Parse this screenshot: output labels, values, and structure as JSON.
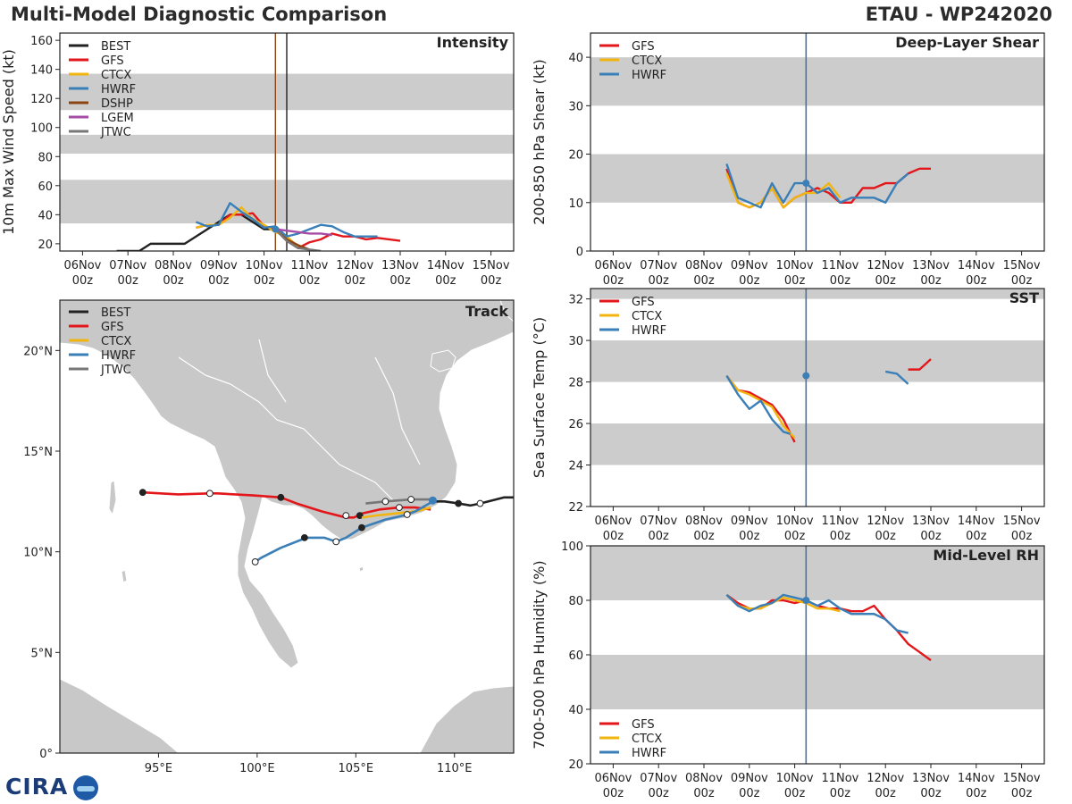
{
  "header": {
    "title": "Multi-Model Diagnostic Comparison",
    "storm": "ETAU - WP242020"
  },
  "logo": {
    "text": "CIRA",
    "name": "cira-logo"
  },
  "colors": {
    "BEST": "#222222",
    "GFS": "#e3171b",
    "CTCX": "#f2b50f",
    "HWRF": "#3a7fb8",
    "DSHP": "#8b4513",
    "LGEM": "#a64ca6",
    "JTWC": "#777777",
    "band": "#cccccc",
    "now": "#5a7088"
  },
  "time_axis": {
    "day_labels": [
      "06Nov",
      "07Nov",
      "08Nov",
      "09Nov",
      "10Nov",
      "11Nov",
      "12Nov",
      "13Nov",
      "14Nov",
      "15Nov"
    ],
    "hour_label": "00z",
    "range": [
      -0.5,
      9.5
    ],
    "now": 4.25
  },
  "chart_data": [
    {
      "id": "intensity",
      "type": "line",
      "title": "Intensity",
      "ylabel": "10m Max Wind Speed (kt)",
      "ylim": [
        15,
        165
      ],
      "yticks": [
        20,
        40,
        60,
        80,
        100,
        120,
        140,
        160
      ],
      "bands": [
        [
          34,
          64
        ],
        [
          82,
          95
        ],
        [
          112,
          137
        ]
      ],
      "vlines": [
        {
          "x": 4.25,
          "color": "#8b4513"
        },
        {
          "x": 4.5,
          "color": "#222222"
        }
      ],
      "legend": [
        "BEST",
        "GFS",
        "CTCX",
        "HWRF",
        "DSHP",
        "LGEM",
        "JTWC"
      ],
      "series": [
        {
          "name": "BEST",
          "x": [
            0.75,
            1,
            1.25,
            1.5,
            1.75,
            2,
            2.25,
            2.5,
            2.75,
            3,
            3.25,
            3.5,
            3.75,
            4,
            4.25
          ],
          "y": [
            15,
            15,
            15,
            20,
            20,
            20,
            20,
            25,
            30,
            35,
            40,
            40,
            35,
            30,
            30
          ]
        },
        {
          "name": "GFS",
          "x": [
            2.5,
            2.75,
            3,
            3.25,
            3.5,
            3.75,
            4,
            4.25,
            4.5,
            4.75,
            5,
            5.25,
            5.5,
            5.75,
            6,
            6.25,
            6.5,
            6.75,
            7
          ],
          "y": [
            31,
            33,
            33,
            40,
            40,
            41,
            32,
            30,
            22,
            17,
            21,
            23,
            27,
            25,
            25,
            23,
            24,
            23,
            22
          ]
        },
        {
          "name": "CTCX",
          "x": [
            2.5,
            2.75,
            3,
            3.25,
            3.5,
            3.75,
            4,
            4.25,
            4.5,
            4.75
          ],
          "y": [
            31,
            33,
            33,
            38,
            45,
            37,
            33,
            28,
            25,
            18
          ]
        },
        {
          "name": "HWRF",
          "x": [
            2.5,
            2.75,
            3,
            3.25,
            3.5,
            3.75,
            4,
            4.25,
            4.5,
            4.75,
            5,
            5.25,
            5.5,
            5.75,
            6,
            6.25,
            6.5
          ],
          "y": [
            35,
            32,
            33,
            48,
            42,
            37,
            31,
            32,
            25,
            27,
            30,
            33,
            32,
            28,
            25,
            25,
            25
          ]
        },
        {
          "name": "DSHP",
          "x": [
            4.25,
            4.5,
            4.75,
            5
          ],
          "y": [
            30,
            23,
            19,
            16
          ]
        },
        {
          "name": "LGEM",
          "x": [
            4.25,
            4.5,
            4.75,
            5,
            5.25,
            5.5
          ],
          "y": [
            30,
            29,
            28,
            27,
            27,
            26
          ]
        },
        {
          "name": "JTWC",
          "x": [
            4.25,
            4.5,
            4.75,
            5,
            5.25
          ],
          "y": [
            30,
            22,
            17,
            16,
            15
          ]
        }
      ]
    },
    {
      "id": "shear",
      "type": "line",
      "title": "Deep-Layer Shear",
      "ylabel": "200-850 hPa Shear (kt)",
      "ylim": [
        0,
        45
      ],
      "yticks": [
        0,
        10,
        20,
        30,
        40
      ],
      "bands": [
        [
          10,
          20
        ],
        [
          30,
          40
        ]
      ],
      "legend": [
        "GFS",
        "CTCX",
        "HWRF"
      ],
      "series": [
        {
          "name": "GFS",
          "x": [
            2.5,
            2.75,
            3,
            3.25,
            3.5,
            3.75,
            4,
            4.25,
            4.5,
            4.75,
            5,
            5.25,
            5.5,
            5.75,
            6,
            6.25,
            6.5,
            6.75,
            7
          ],
          "y": [
            17,
            10,
            9,
            10,
            13,
            9,
            11,
            12,
            13,
            12,
            10,
            10,
            13,
            13,
            14,
            14,
            16,
            17,
            17
          ]
        },
        {
          "name": "CTCX",
          "x": [
            2.5,
            2.75,
            3,
            3.25,
            3.5,
            3.75,
            4,
            4.25,
            4.5,
            4.75,
            5
          ],
          "y": [
            16,
            10,
            9,
            10,
            13,
            9,
            11,
            12,
            12,
            14,
            11
          ]
        },
        {
          "name": "HWRF",
          "x": [
            2.5,
            2.75,
            3,
            3.25,
            3.5,
            3.75,
            4,
            4.25,
            4.5,
            4.75,
            5,
            5.25,
            5.5,
            5.75,
            6,
            6.25,
            6.5
          ],
          "y": [
            18,
            11,
            10,
            9,
            14,
            10,
            14,
            14,
            12,
            13,
            10,
            11,
            11,
            11,
            10,
            14,
            16
          ]
        }
      ]
    },
    {
      "id": "sst",
      "type": "line",
      "title": "SST",
      "ylabel": "Sea Surface Temp (°C)",
      "ylim": [
        22,
        32.5
      ],
      "yticks": [
        22,
        24,
        26,
        28,
        30,
        32
      ],
      "bands": [
        [
          24,
          26
        ],
        [
          28,
          30
        ],
        [
          32,
          33
        ]
      ],
      "legend": [
        "GFS",
        "CTCX",
        "HWRF"
      ],
      "series": [
        {
          "name": "GFS",
          "x": [
            2.5,
            2.75,
            3,
            3.25,
            3.5,
            3.75,
            4
          ],
          "y": [
            28.3,
            27.6,
            27.5,
            27.2,
            26.9,
            26.2,
            25.1
          ],
          "x2": [
            6.5,
            6.75,
            7
          ],
          "y2": [
            28.6,
            28.6,
            29.1
          ]
        },
        {
          "name": "CTCX",
          "x": [
            2.5,
            2.75,
            3,
            3.25,
            3.5,
            3.75,
            4
          ],
          "y": [
            28.3,
            27.6,
            27.4,
            27.1,
            26.8,
            25.9,
            25.3
          ]
        },
        {
          "name": "HWRF",
          "x": [
            2.5,
            2.75,
            3,
            3.25,
            3.5,
            3.75,
            3.9
          ],
          "y": [
            28.3,
            27.4,
            26.7,
            27.1,
            26.2,
            25.6,
            25.5
          ],
          "x2": [
            6,
            6.25,
            6.5
          ],
          "y2": [
            28.5,
            28.4,
            27.9
          ]
        }
      ]
    },
    {
      "id": "rh",
      "type": "line",
      "title": "Mid-Level RH",
      "ylabel": "700-500 hPa Humidity (%)",
      "ylim": [
        20,
        100
      ],
      "yticks": [
        20,
        40,
        60,
        80,
        100
      ],
      "bands": [
        [
          40,
          60
        ],
        [
          80,
          100
        ]
      ],
      "legend": [
        "GFS",
        "CTCX",
        "HWRF"
      ],
      "series": [
        {
          "name": "GFS",
          "x": [
            2.5,
            2.75,
            3,
            3.25,
            3.5,
            3.75,
            4,
            4.25,
            4.5,
            4.75,
            5,
            5.25,
            5.5,
            5.75,
            6,
            6.25,
            6.5,
            6.75,
            7
          ],
          "y": [
            82,
            79,
            77,
            77,
            80,
            80,
            79,
            80,
            78,
            77,
            77,
            76,
            76,
            78,
            73,
            69,
            64,
            61,
            58
          ]
        },
        {
          "name": "CTCX",
          "x": [
            2.5,
            2.75,
            3,
            3.25,
            3.5,
            3.75,
            4,
            4.25,
            4.5,
            4.75,
            5
          ],
          "y": [
            82,
            78,
            77,
            77,
            79,
            81,
            80,
            79,
            77,
            77,
            76
          ]
        },
        {
          "name": "HWRF",
          "x": [
            2.5,
            2.75,
            3,
            3.25,
            3.5,
            3.75,
            4,
            4.25,
            4.5,
            4.75,
            5,
            5.25,
            5.5,
            5.75,
            6,
            6.25,
            6.5
          ],
          "y": [
            82,
            78,
            76,
            78,
            79,
            82,
            81,
            80,
            78,
            80,
            77,
            75,
            75,
            75,
            73,
            69,
            68
          ]
        }
      ]
    },
    {
      "id": "track",
      "type": "scatter",
      "title": "Track",
      "xlabel": "Longitude",
      "ylabel": "Latitude",
      "xlim": [
        90,
        113
      ],
      "ylim": [
        0,
        22.5
      ],
      "xticks": [
        95,
        100,
        105,
        110
      ],
      "xtick_labels": [
        "95°E",
        "100°E",
        "105°E",
        "110°E"
      ],
      "yticks": [
        0,
        5,
        10,
        15,
        20
      ],
      "ytick_labels": [
        "0°",
        "5°N",
        "10°N",
        "15°N",
        "20°N"
      ],
      "legend": [
        "BEST",
        "GFS",
        "CTCX",
        "HWRF",
        "JTWC"
      ],
      "series": [
        {
          "name": "BEST",
          "lon": [
            113.5,
            112.5,
            111.3,
            110.8,
            110.2,
            109.5,
            108.9
          ],
          "lat": [
            12.7,
            12.7,
            12.4,
            12.3,
            12.4,
            12.5,
            12.5
          ],
          "dots": [
            [
              110.2,
              12.4,
              "f"
            ],
            [
              111.3,
              12.4,
              "o"
            ]
          ]
        },
        {
          "name": "GFS",
          "lon": [
            108.8,
            108,
            107.2,
            106.2,
            105.3,
            104.9,
            104.5,
            103.3,
            102,
            101.2,
            99.8,
            98,
            97.6,
            96,
            94.2
          ],
          "lat": [
            12.1,
            12.2,
            12.2,
            12.1,
            11.9,
            11.7,
            11.7,
            12,
            12.4,
            12.7,
            12.8,
            12.9,
            12.9,
            12.85,
            12.95
          ],
          "dots": [
            [
              107.2,
              12.2,
              "o"
            ],
            [
              105.2,
              11.8,
              "f"
            ],
            [
              104.5,
              11.8,
              "o"
            ],
            [
              101.2,
              12.7,
              "f"
            ],
            [
              97.6,
              12.9,
              "o"
            ],
            [
              94.2,
              12.95,
              "f"
            ]
          ]
        },
        {
          "name": "CTCX",
          "lon": [
            108.8,
            108,
            107,
            106,
            105.3
          ],
          "lat": [
            12.2,
            12.0,
            11.9,
            11.8,
            11.7
          ],
          "dots": []
        },
        {
          "name": "HWRF",
          "lon": [
            108.9,
            108,
            107.4,
            106.5,
            105.3,
            104.5,
            104,
            103.4,
            102.5,
            101.2,
            100.2,
            99.9
          ],
          "lat": [
            12.5,
            12,
            11.8,
            11.6,
            11.2,
            10.7,
            10.5,
            10.7,
            10.7,
            10.2,
            9.7,
            9.5
          ],
          "dots": [
            [
              107.6,
              11.85,
              "o"
            ],
            [
              105.3,
              11.2,
              "f"
            ],
            [
              104,
              10.5,
              "o"
            ],
            [
              102.4,
              10.7,
              "f"
            ],
            [
              99.9,
              9.5,
              "o"
            ]
          ]
        },
        {
          "name": "JTWC",
          "lon": [
            108.9,
            107.8,
            106.5,
            105.5
          ],
          "lat": [
            12.6,
            12.6,
            12.5,
            12.4
          ],
          "dots": [
            [
              107.8,
              12.6,
              "o"
            ],
            [
              106.5,
              12.5,
              "o"
            ]
          ]
        }
      ]
    }
  ]
}
